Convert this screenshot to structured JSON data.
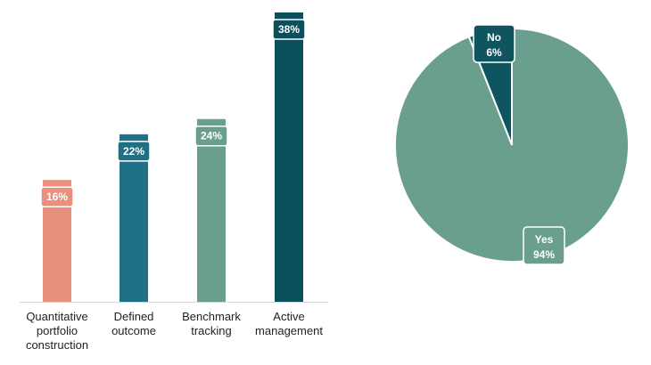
{
  "chart_data": [
    {
      "type": "bar",
      "categories": [
        [
          "Quantitative",
          "portfolio",
          "construction"
        ],
        [
          "Defined",
          "outcome"
        ],
        [
          "Benchmark",
          "tracking"
        ],
        [
          "Active",
          "management"
        ]
      ],
      "values": [
        16,
        22,
        24,
        38
      ],
      "data_labels": [
        "16%",
        "22%",
        "24%",
        "38%"
      ],
      "colors": [
        "#e8907d",
        "#1f6f86",
        "#6a9e8e",
        "#0c4f5c"
      ],
      "ylim": [
        0,
        40
      ],
      "grid": false,
      "legend": "none"
    },
    {
      "type": "pie",
      "slices": [
        {
          "label": "No",
          "value": 6,
          "value_label": "6%",
          "color": "#0f5560"
        },
        {
          "label": "Yes",
          "value": 94,
          "value_label": "94%",
          "color": "#6a9e8e"
        }
      ],
      "legend": "none"
    }
  ]
}
